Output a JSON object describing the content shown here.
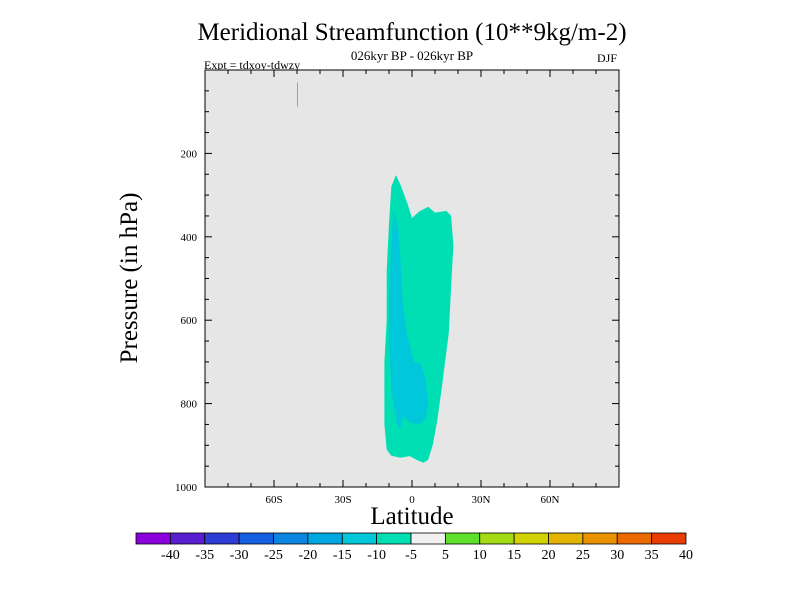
{
  "chart_data": {
    "type": "contour",
    "title": "Meridional Streamfunction (10**9kg/m-2)",
    "subtitle": "026kyr BP - 026kyr BP",
    "expt_label": "Expt = tdxoy-tdwzy",
    "season_label": "DJF",
    "xlabel": "Latitude",
    "ylabel": "Pressure (in hPa)",
    "xlim": [
      -90,
      90
    ],
    "ylim": [
      1000,
      0
    ],
    "x_ticks": [
      {
        "value": -60,
        "label": "60S"
      },
      {
        "value": -30,
        "label": "30S"
      },
      {
        "value": 0,
        "label": "0"
      },
      {
        "value": 30,
        "label": "30N"
      },
      {
        "value": 60,
        "label": "60N"
      }
    ],
    "y_ticks": [
      {
        "value": 200,
        "label": "200"
      },
      {
        "value": 400,
        "label": "400"
      },
      {
        "value": 600,
        "label": "600"
      },
      {
        "value": 800,
        "label": "800"
      },
      {
        "value": 1000,
        "label": "1000"
      }
    ],
    "background_color": "#e6e6e6",
    "colorbar": {
      "labels": [
        "-40",
        "-35",
        "-30",
        "-25",
        "-20",
        "-15",
        "-10",
        "-5",
        "5",
        "10",
        "15",
        "20",
        "25",
        "30",
        "35",
        "40"
      ],
      "colors": [
        "#8a00dc",
        "#5a1ed2",
        "#2e3cd8",
        "#1560e0",
        "#0a86e0",
        "#00a8e2",
        "#00c7da",
        "#00dfb4",
        "#f0f0f0",
        "#5ee02c",
        "#a4dc14",
        "#d2d200",
        "#e4b400",
        "#ea9200",
        "#ec6a00",
        "#e83c00"
      ]
    },
    "regions": [
      {
        "name": "-10 to -5",
        "color": "#00dfb4",
        "points": [
          [
            -9,
            280
          ],
          [
            -7,
            252
          ],
          [
            -5,
            275
          ],
          [
            -2,
            320
          ],
          [
            0,
            355
          ],
          [
            3,
            340
          ],
          [
            7,
            328
          ],
          [
            10,
            342
          ],
          [
            15,
            338
          ],
          [
            17,
            350
          ],
          [
            18,
            420
          ],
          [
            17,
            520
          ],
          [
            16,
            630
          ],
          [
            13,
            760
          ],
          [
            11,
            840
          ],
          [
            9,
            900
          ],
          [
            7,
            935
          ],
          [
            5,
            942
          ],
          [
            2,
            935
          ],
          [
            -1,
            926
          ],
          [
            -5,
            930
          ],
          [
            -9,
            925
          ],
          [
            -11,
            910
          ],
          [
            -12,
            850
          ],
          [
            -12,
            780
          ],
          [
            -12,
            700
          ],
          [
            -11,
            600
          ],
          [
            -11,
            480
          ],
          [
            -10,
            370
          ]
        ]
      },
      {
        "name": "-15 to -10",
        "color": "#00c7da",
        "points": [
          [
            -8,
            335
          ],
          [
            -6,
            380
          ],
          [
            -5,
            460
          ],
          [
            -4,
            560
          ],
          [
            -2,
            640
          ],
          [
            1,
            700
          ],
          [
            4,
            705
          ],
          [
            6,
            748
          ],
          [
            7,
            800
          ],
          [
            6,
            835
          ],
          [
            3,
            850
          ],
          [
            -1,
            845
          ],
          [
            -4,
            830
          ],
          [
            -5,
            860
          ],
          [
            -7,
            845
          ],
          [
            -9,
            760
          ],
          [
            -10,
            660
          ],
          [
            -10,
            540
          ],
          [
            -9,
            420
          ]
        ]
      },
      {
        "name": "-10 to -5",
        "color": "#00dfb4",
        "points": [
          [
            -50,
            30
          ],
          [
            -49.6,
            30
          ],
          [
            -49.6,
            88
          ],
          [
            -50,
            88
          ]
        ]
      }
    ]
  }
}
